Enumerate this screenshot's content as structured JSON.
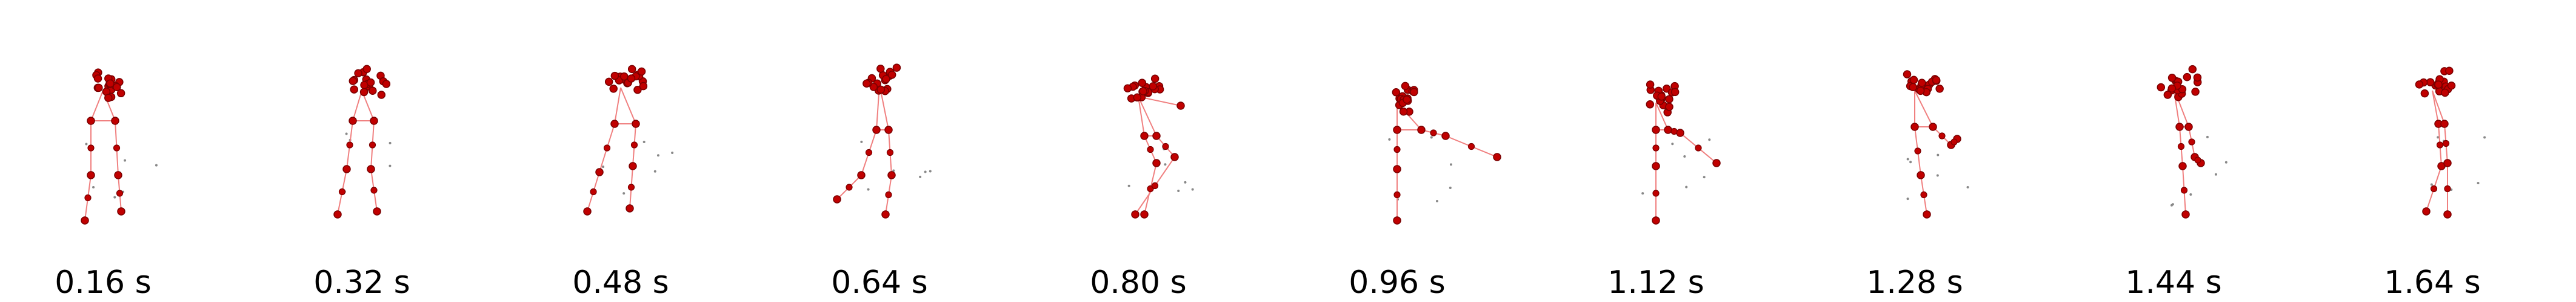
{
  "frames": [
    {
      "time_label": "0.16 s"
    },
    {
      "time_label": "0.32 s"
    },
    {
      "time_label": "0.48 s"
    },
    {
      "time_label": "0.64 s"
    },
    {
      "time_label": "0.80 s"
    },
    {
      "time_label": "0.96 s"
    },
    {
      "time_label": "1.12 s"
    },
    {
      "time_label": "1.28 s"
    },
    {
      "time_label": "1.44 s"
    },
    {
      "time_label": "1.64 s"
    }
  ],
  "colors": {
    "joint": "#c00000",
    "joint_stroke": "#7a0000",
    "bone": "#f08080",
    "ghost": "#888888",
    "label": "#000000"
  }
}
